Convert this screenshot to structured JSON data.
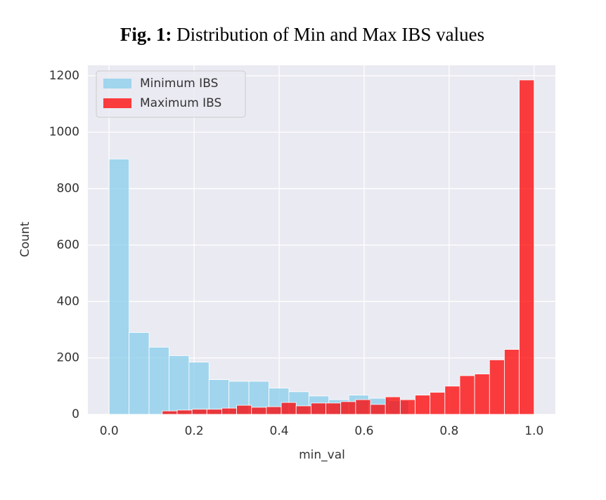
{
  "chart_data": {
    "type": "histogram",
    "figure_label": "Fig. 1:",
    "title": "Distribution of Min and Max IBS values",
    "x_label": "min_val",
    "y_label": "Count",
    "xlim": [
      -0.05,
      1.05
    ],
    "ylim": [
      0,
      1237
    ],
    "xticks": [
      {
        "value": 0,
        "label": "0.0"
      },
      0.2,
      0.4,
      0.6,
      0.8,
      {
        "value": 1,
        "label": "1.0"
      }
    ],
    "yticks": [
      0,
      200,
      400,
      600,
      800,
      1000,
      1200
    ],
    "grid": true,
    "legend": "upper left",
    "series": [
      {
        "name": "Minimum IBS",
        "color": "#87ceeb",
        "bins": [
          0,
          0.047,
          0.094,
          0.141,
          0.188,
          0.235,
          0.282,
          0.329,
          0.376,
          0.423,
          0.47,
          0.517,
          0.564,
          0.611,
          0.658,
          0.705
        ],
        "values": [
          905,
          290,
          238,
          208,
          185,
          123,
          117,
          117,
          93,
          80,
          65,
          52,
          68,
          57,
          48
        ]
      },
      {
        "name": "Maximum IBS",
        "color": "#ff0000",
        "bins": [
          0.125,
          0.16,
          0.195,
          0.23,
          0.265,
          0.3,
          0.335,
          0.37,
          0.405,
          0.44,
          0.475,
          0.51,
          0.545,
          0.58,
          0.615,
          0.65,
          0.685,
          0.72,
          0.755,
          0.79,
          0.825,
          0.86,
          0.895,
          0.93,
          0.965,
          1.0
        ],
        "values": [
          12,
          15,
          18,
          18,
          22,
          32,
          25,
          27,
          42,
          30,
          40,
          40,
          45,
          52,
          35,
          62,
          52,
          68,
          78,
          100,
          137,
          143,
          193,
          230,
          1185
        ]
      }
    ]
  }
}
